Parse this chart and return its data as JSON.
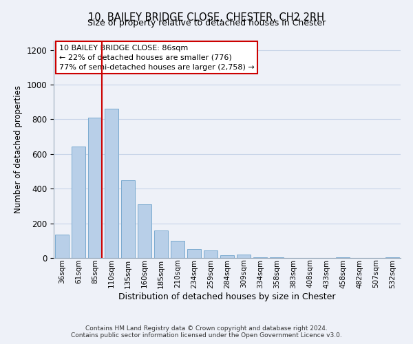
{
  "title": "10, BAILEY BRIDGE CLOSE, CHESTER, CH2 2RH",
  "subtitle": "Size of property relative to detached houses in Chester",
  "xlabel": "Distribution of detached houses by size in Chester",
  "ylabel": "Number of detached properties",
  "bar_color": "#b8cfe8",
  "bar_edge_color": "#7aaad0",
  "categories": [
    "36sqm",
    "61sqm",
    "85sqm",
    "110sqm",
    "135sqm",
    "160sqm",
    "185sqm",
    "210sqm",
    "234sqm",
    "259sqm",
    "284sqm",
    "309sqm",
    "334sqm",
    "358sqm",
    "383sqm",
    "408sqm",
    "433sqm",
    "458sqm",
    "482sqm",
    "507sqm",
    "532sqm"
  ],
  "values": [
    135,
    643,
    810,
    863,
    448,
    308,
    157,
    98,
    52,
    43,
    15,
    20,
    5,
    2,
    0,
    0,
    0,
    2,
    0,
    0,
    3
  ],
  "vline_index": 2,
  "vline_color": "#cc0000",
  "ylim": [
    0,
    1250
  ],
  "yticks": [
    0,
    200,
    400,
    600,
    800,
    1000,
    1200
  ],
  "annotation_title": "10 BAILEY BRIDGE CLOSE: 86sqm",
  "annotation_line1": "← 22% of detached houses are smaller (776)",
  "annotation_line2": "77% of semi-detached houses are larger (2,758) →",
  "annotation_box_color": "#ffffff",
  "annotation_box_edge": "#cc0000",
  "footer1": "Contains HM Land Registry data © Crown copyright and database right 2024.",
  "footer2": "Contains public sector information licensed under the Open Government Licence v3.0.",
  "background_color": "#eef1f8",
  "grid_color": "#c8d4e8"
}
